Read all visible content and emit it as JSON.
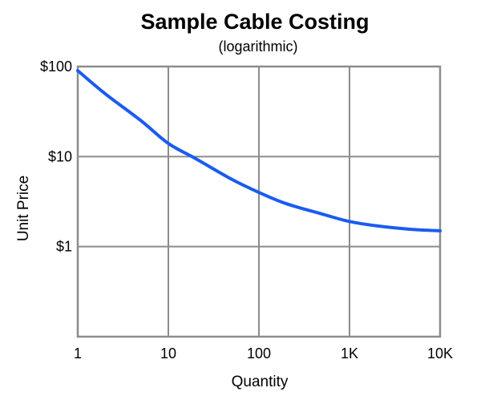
{
  "chart_data": {
    "type": "line",
    "title": "Sample Cable Costing",
    "subtitle": "(logarithmic)",
    "xlabel": "Quantity",
    "ylabel": "Unit Price",
    "x_scale": "log",
    "y_scale": "log",
    "xlim": [
      1,
      10000
    ],
    "ylim": [
      0.1,
      100
    ],
    "x_ticks": [
      {
        "value": 1,
        "label": "1"
      },
      {
        "value": 10,
        "label": "10"
      },
      {
        "value": 100,
        "label": "100"
      },
      {
        "value": 1000,
        "label": "1K"
      },
      {
        "value": 10000,
        "label": "10K"
      }
    ],
    "y_ticks": [
      {
        "value": 1,
        "label": "$1"
      },
      {
        "value": 10,
        "label": "$10"
      },
      {
        "value": 100,
        "label": "$100"
      }
    ],
    "grid": true,
    "series": [
      {
        "color": "#1a5cf0",
        "x": [
          1,
          2,
          5,
          10,
          20,
          50,
          100,
          200,
          500,
          1000,
          2000,
          5000,
          10000
        ],
        "y": [
          90,
          50,
          25,
          14,
          9.5,
          5.6,
          4,
          3,
          2.3,
          1.9,
          1.7,
          1.55,
          1.5
        ]
      }
    ]
  }
}
